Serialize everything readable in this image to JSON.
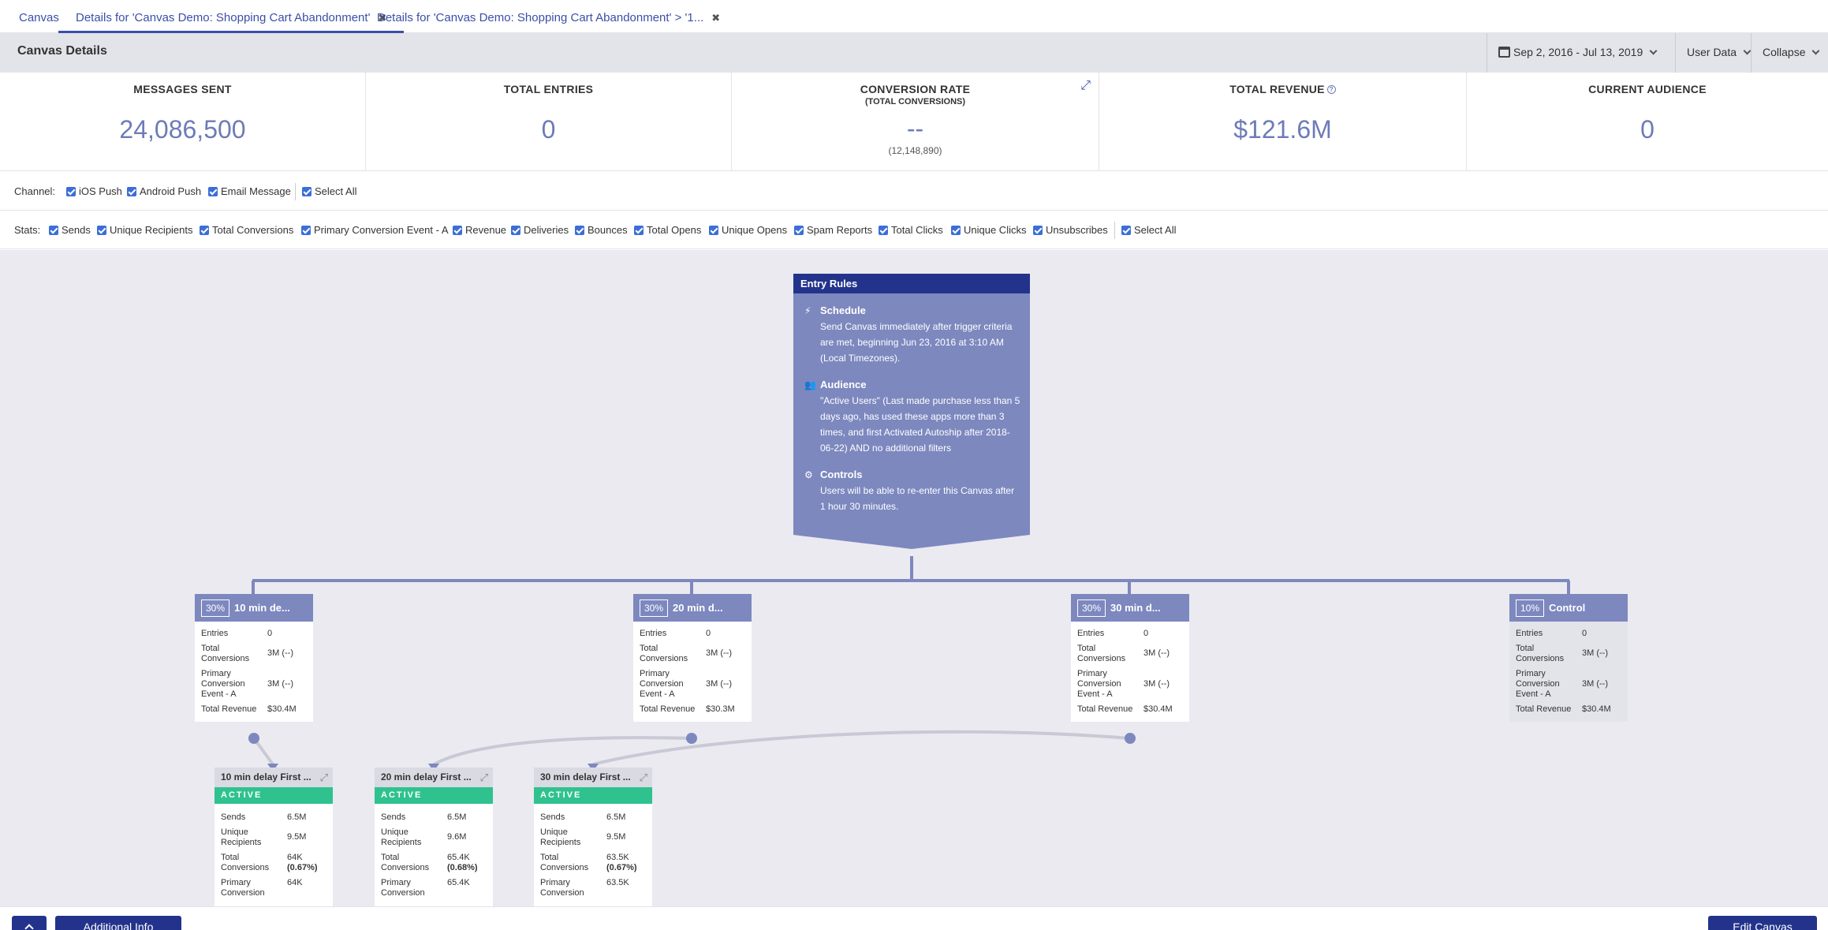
{
  "tabs": [
    {
      "label": "Canvas"
    },
    {
      "label": "Details for 'Canvas Demo: Shopping Cart Abandonment'"
    },
    {
      "label": "Details for 'Canvas Demo: Shopping Cart Abandonment' > '1..."
    }
  ],
  "header": {
    "title": "Canvas Details",
    "date_range": "Sep 2, 2016 - Jul 13, 2019",
    "user_data": "User Data",
    "collapse": "Collapse"
  },
  "stats": {
    "messages_sent": {
      "label": "MESSAGES SENT",
      "value": "24,086,500"
    },
    "total_entries": {
      "label": "TOTAL ENTRIES",
      "value": "0"
    },
    "conversion_rate": {
      "label": "CONVERSION RATE",
      "sub": "(TOTAL CONVERSIONS)",
      "value": "--",
      "count": "(12,148,890)"
    },
    "total_revenue": {
      "label": "TOTAL REVENUE",
      "value": "$121.6M"
    },
    "current_audience": {
      "label": "CURRENT AUDIENCE",
      "value": "0"
    }
  },
  "channel": {
    "label": "Channel:",
    "options": [
      "iOS Push",
      "Android Push",
      "Email Message",
      "Select All"
    ]
  },
  "stats_filter": {
    "label": "Stats:",
    "options": [
      "Sends",
      "Unique Recipients",
      "Total Conversions",
      "Primary Conversion Event - A",
      "Revenue",
      "Deliveries",
      "Bounces",
      "Total Opens",
      "Unique Opens",
      "Spam Reports",
      "Total Clicks",
      "Unique Clicks",
      "Unsubscribes",
      "Select All"
    ]
  },
  "entry_rules": {
    "title": "Entry Rules",
    "schedule_title": "Schedule",
    "schedule_text": "Send Canvas immediately after trigger criteria are met, beginning Jun 23, 2016 at 3:10 AM (Local Timezones).",
    "audience_title": "Audience",
    "audience_text": "\"Active Users\" (Last made purchase less than 5 days ago, has used these apps more than 3 times, and first Activated Autoship after 2018-06-22) AND no additional filters",
    "controls_title": "Controls",
    "controls_text": "Users will be able to re-enter this Canvas after 1 hour 30 minutes."
  },
  "branch_labels": {
    "entries": "Entries",
    "total_conversions": "Total Conversions",
    "primary_conversion": "Primary Conversion Event - A",
    "total_revenue": "Total Revenue"
  },
  "branches": [
    {
      "pct": "30%",
      "name": "10 min de...",
      "entries": "0",
      "total_conversions": "3M (--)",
      "primary_conversion": "3M (--)",
      "total_revenue": "$30.4M"
    },
    {
      "pct": "30%",
      "name": "20 min d...",
      "entries": "0",
      "total_conversions": "3M (--)",
      "primary_conversion": "3M (--)",
      "total_revenue": "$30.3M"
    },
    {
      "pct": "30%",
      "name": "30 min d...",
      "entries": "0",
      "total_conversions": "3M (--)",
      "primary_conversion": "3M (--)",
      "total_revenue": "$30.4M"
    },
    {
      "pct": "10%",
      "name": "Control",
      "entries": "0",
      "total_conversions": "3M (--)",
      "primary_conversion": "3M (--)",
      "total_revenue": "$30.4M"
    }
  ],
  "step_labels": {
    "status": "ACTIVE",
    "sends": "Sends",
    "unique_recipients": "Unique Recipients",
    "total_conversions": "Total Conversions",
    "primary_conversion": "Primary Conversion"
  },
  "steps": [
    {
      "name": "10 min delay First ...",
      "sends": "6.5M",
      "unique_recipients": "9.5M",
      "total_conversions": "64K",
      "conv_rate": "(0.67%)",
      "primary_conversion": "64K"
    },
    {
      "name": "20 min delay First ...",
      "sends": "6.5M",
      "unique_recipients": "9.6M",
      "total_conversions": "65.4K",
      "conv_rate": "(0.68%)",
      "primary_conversion": "65.4K"
    },
    {
      "name": "30 min delay First ...",
      "sends": "6.5M",
      "unique_recipients": "9.5M",
      "total_conversions": "63.5K",
      "conv_rate": "(0.67%)",
      "primary_conversion": "63.5K"
    }
  ],
  "footer": {
    "additional_info": "Additional Info",
    "edit_canvas": "Edit Canvas"
  }
}
